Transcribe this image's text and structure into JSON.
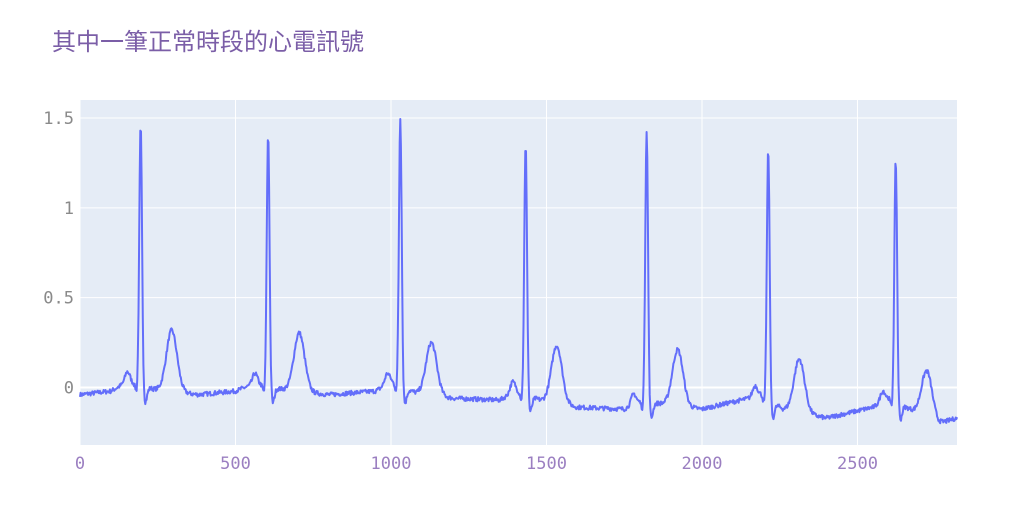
{
  "chart_data": {
    "type": "line",
    "title": "其中一筆正常時段的心電訊號",
    "xlabel": "",
    "ylabel": "",
    "xlim": [
      0,
      2820
    ],
    "ylim": [
      -0.32,
      1.6
    ],
    "grid": true,
    "x_ticks": [
      0,
      500,
      1000,
      1500,
      2000,
      2500
    ],
    "x_tick_labels": [
      "0",
      "500",
      "1000",
      "1500",
      "2000",
      "2500"
    ],
    "y_ticks": [
      0,
      0.5,
      1,
      1.5
    ],
    "y_tick_labels": [
      "0",
      "0.5",
      "1",
      "1.5"
    ],
    "colors": {
      "line": "#636efa",
      "plot_bg": "#e5ecf6",
      "grid": "#ffffff"
    },
    "series": [
      {
        "beats": [
          {
            "r": 195,
            "r_peak": 1.46,
            "t_peak": 0.37,
            "base": 0.0
          },
          {
            "r": 605,
            "r_peak": 1.41,
            "t_peak": 0.35,
            "base": -0.03
          },
          {
            "r": 1030,
            "r_peak": 1.51,
            "t_peak": 0.32,
            "base": -0.02
          },
          {
            "r": 1433,
            "r_peak": 1.35,
            "t_peak": 0.3,
            "base": -0.06
          },
          {
            "r": 1822,
            "r_peak": 1.43,
            "t_peak": 0.25,
            "base": -0.11
          },
          {
            "r": 2213,
            "r_peak": 1.33,
            "t_peak": 0.25,
            "base": -0.1
          },
          {
            "r": 2623,
            "r_peak": 1.27,
            "t_peak": 0.2,
            "base": -0.13
          }
        ],
        "baseline": [
          [
            0,
            -0.04
          ],
          [
            100,
            -0.02
          ],
          [
            150,
            0.03
          ],
          [
            240,
            -0.01
          ],
          [
            380,
            -0.04
          ],
          [
            500,
            -0.02
          ],
          [
            560,
            0.02
          ],
          [
            650,
            -0.01
          ],
          [
            800,
            -0.04
          ],
          [
            950,
            -0.02
          ],
          [
            1000,
            0.03
          ],
          [
            1080,
            -0.03
          ],
          [
            1200,
            -0.06
          ],
          [
            1350,
            -0.07
          ],
          [
            1400,
            -0.02
          ],
          [
            1480,
            -0.07
          ],
          [
            1600,
            -0.11
          ],
          [
            1750,
            -0.12
          ],
          [
            1800,
            -0.08
          ],
          [
            1870,
            -0.09
          ],
          [
            2000,
            -0.12
          ],
          [
            2150,
            -0.06
          ],
          [
            2190,
            -0.04
          ],
          [
            2260,
            -0.12
          ],
          [
            2400,
            -0.17
          ],
          [
            2550,
            -0.11
          ],
          [
            2600,
            -0.06
          ],
          [
            2680,
            -0.13
          ],
          [
            2760,
            -0.2
          ],
          [
            2820,
            -0.17
          ]
        ]
      }
    ]
  }
}
